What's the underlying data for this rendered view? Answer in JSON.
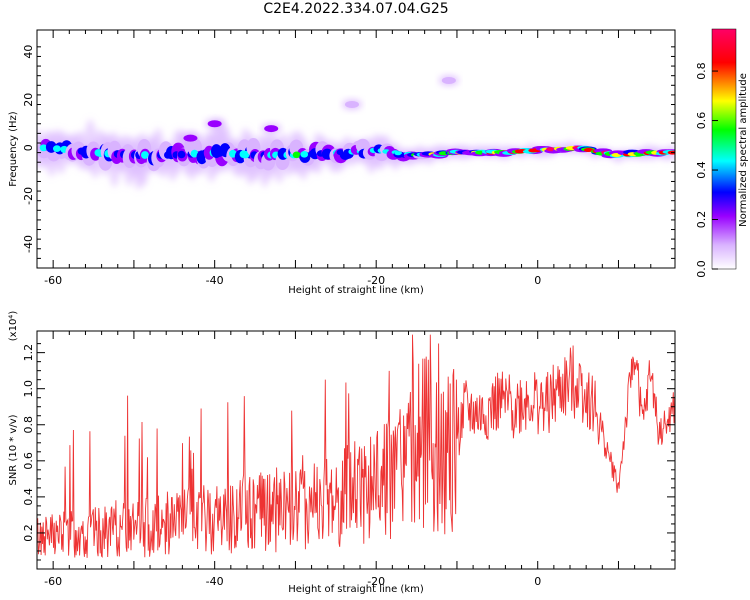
{
  "title": "C2E4.2022.334.07.04.G25",
  "chart_data": [
    {
      "type": "heatmap",
      "xlabel": "Height of straight line (km)",
      "ylabel": "Frequency (Hz)",
      "xlim": [
        -62,
        17
      ],
      "ylim": [
        -50,
        49
      ],
      "xticks": [
        -60,
        -40,
        -20,
        0
      ],
      "yticks": [
        -40,
        -20,
        0,
        20,
        40
      ],
      "colorbar": {
        "label": "Normalized spectral amplitude",
        "range": [
          0.0,
          0.97
        ],
        "ticks": [
          "0.0",
          "0.2",
          "0.4",
          "0.6",
          "0.8"
        ],
        "colors": [
          "#ffffff",
          "#d9b3ff",
          "#9900ff",
          "#0000ff",
          "#00ffff",
          "#00ff00",
          "#ffff00",
          "#ff0000",
          "#ff0066"
        ]
      },
      "band": {
        "points": [
          {
            "x": -60,
            "f": 0,
            "w": 10,
            "a": 0.45
          },
          {
            "x": -55,
            "f": -2,
            "w": 11,
            "a": 0.5
          },
          {
            "x": -50,
            "f": -3,
            "w": 12,
            "a": 0.45
          },
          {
            "x": -45,
            "f": -3,
            "w": 11,
            "a": 0.5
          },
          {
            "x": -40,
            "f": -2,
            "w": 12,
            "a": 0.5
          },
          {
            "x": -35,
            "f": -3,
            "w": 11,
            "a": 0.45
          },
          {
            "x": -30,
            "f": -3,
            "w": 10,
            "a": 0.5
          },
          {
            "x": -25,
            "f": -2,
            "w": 9,
            "a": 0.5
          },
          {
            "x": -20,
            "f": -1,
            "w": 8,
            "a": 0.5
          },
          {
            "x": -15,
            "f": -3,
            "w": 4,
            "a": 0.6
          },
          {
            "x": -10,
            "f": -2,
            "w": 3,
            "a": 0.7
          },
          {
            "x": -5,
            "f": -2,
            "w": 3,
            "a": 0.8
          },
          {
            "x": 0,
            "f": -1,
            "w": 3,
            "a": 0.8
          },
          {
            "x": 5,
            "f": 0,
            "w": 3,
            "a": 0.95
          },
          {
            "x": 10,
            "f": -3,
            "w": 3,
            "a": 0.85
          },
          {
            "x": 15,
            "f": -2,
            "w": 3,
            "a": 0.85
          }
        ],
        "blobs": [
          {
            "x": -40,
            "f": 10,
            "a": 0.3
          },
          {
            "x": -33,
            "f": 8,
            "a": 0.2
          },
          {
            "x": -23,
            "f": 18,
            "a": 0.1
          },
          {
            "x": -11,
            "f": 28,
            "a": 0.1
          },
          {
            "x": -43,
            "f": 4,
            "a": 0.25
          }
        ]
      }
    },
    {
      "type": "line",
      "xlabel": "Height of straight line (km)",
      "ylabel": "SNR (10 * v/v)",
      "yscale_label": "(x10⁴)",
      "xlim": [
        -62,
        17
      ],
      "ylim": [
        0.0,
        1.32
      ],
      "xticks": [
        -60,
        -40,
        -20,
        0
      ],
      "yticks": [
        "0.2",
        "0.4",
        "0.6",
        "0.8",
        "1.0",
        "1.2"
      ],
      "color": "#ee3333",
      "series": [
        {
          "x": [
            -62,
            -58,
            -54,
            -50,
            -46,
            -42,
            -38,
            -34,
            -30,
            -26,
            -22,
            -18,
            -15,
            -13,
            -11,
            -9,
            -7,
            -5,
            -3,
            -1,
            1,
            3,
            5,
            7,
            9,
            10,
            11,
            12,
            13,
            14,
            15,
            16,
            17
          ],
          "y": [
            0.18,
            0.2,
            0.2,
            0.22,
            0.25,
            0.27,
            0.3,
            0.32,
            0.35,
            0.38,
            0.45,
            0.5,
            0.65,
            0.75,
            0.6,
            0.88,
            0.85,
            0.92,
            0.9,
            0.95,
            0.9,
            1.0,
            1.05,
            0.9,
            0.6,
            0.45,
            0.85,
            1.22,
            0.8,
            1.1,
            0.75,
            0.8,
            0.9
          ]
        }
      ]
    }
  ]
}
